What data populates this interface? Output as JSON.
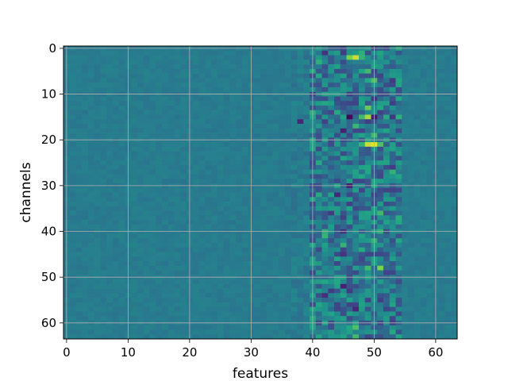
{
  "chart_data": {
    "type": "heatmap",
    "title": "",
    "xlabel": "features",
    "ylabel": "channels",
    "x_range": [
      0,
      63
    ],
    "y_range": [
      0,
      63
    ],
    "y_inverted": true,
    "xticks": [
      0,
      10,
      20,
      30,
      40,
      50,
      60
    ],
    "yticks": [
      0,
      10,
      20,
      30,
      40,
      50,
      60
    ],
    "grid": true,
    "colormap": "viridis",
    "n_rows": 64,
    "n_cols": 64,
    "notable_cells": [
      {
        "row": 2,
        "col": 46,
        "value": 0.88
      },
      {
        "row": 2,
        "col": 47,
        "value": 0.95
      },
      {
        "row": 2,
        "col": 48,
        "value": 0.78
      },
      {
        "row": 5,
        "col": 49,
        "value": 0.8
      },
      {
        "row": 7,
        "col": 50,
        "value": 0.82
      },
      {
        "row": 13,
        "col": 49,
        "value": 0.85
      },
      {
        "row": 13,
        "col": 51,
        "value": 0.75
      },
      {
        "row": 15,
        "col": 45,
        "value": 0.72
      },
      {
        "row": 15,
        "col": 46,
        "value": 0.02
      },
      {
        "row": 15,
        "col": 48,
        "value": 0.8
      },
      {
        "row": 15,
        "col": 49,
        "value": 0.92
      },
      {
        "row": 15,
        "col": 50,
        "value": 0.1
      },
      {
        "row": 16,
        "col": 38,
        "value": 0.15
      },
      {
        "row": 18,
        "col": 45,
        "value": 0.12
      },
      {
        "row": 21,
        "col": 48,
        "value": 0.78
      },
      {
        "row": 21,
        "col": 49,
        "value": 0.95
      },
      {
        "row": 21,
        "col": 50,
        "value": 0.98
      },
      {
        "row": 21,
        "col": 51,
        "value": 0.82
      },
      {
        "row": 25,
        "col": 51,
        "value": 0.72
      },
      {
        "row": 28,
        "col": 48,
        "value": 0.75
      },
      {
        "row": 30,
        "col": 46,
        "value": 0.1
      },
      {
        "row": 32,
        "col": 44,
        "value": 0.15
      },
      {
        "row": 35,
        "col": 43,
        "value": 0.7
      },
      {
        "row": 36,
        "col": 50,
        "value": 0.7
      },
      {
        "row": 40,
        "col": 45,
        "value": 0.2
      },
      {
        "row": 43,
        "col": 45,
        "value": 0.78
      },
      {
        "row": 46,
        "col": 50,
        "value": 0.72
      },
      {
        "row": 48,
        "col": 49,
        "value": 0.8
      },
      {
        "row": 48,
        "col": 51,
        "value": 0.88
      },
      {
        "row": 52,
        "col": 44,
        "value": 0.72
      },
      {
        "row": 52,
        "col": 45,
        "value": 0.12
      },
      {
        "row": 54,
        "col": 42,
        "value": 0.18
      },
      {
        "row": 57,
        "col": 47,
        "value": 0.15
      },
      {
        "row": 59,
        "col": 52,
        "value": 0.7
      },
      {
        "row": 61,
        "col": 46,
        "value": 0.75
      },
      {
        "row": 62,
        "col": 46,
        "value": 0.72
      }
    ]
  }
}
